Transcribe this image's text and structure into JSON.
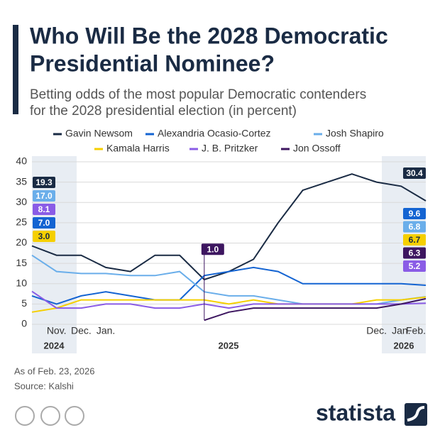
{
  "chart_data": {
    "type": "line",
    "title": [
      "Who Will Be the 2028 Democratic",
      "Presidential Nominee?"
    ],
    "subtitle": [
      "Betting odds of the most popular Democratic contenders",
      "for the 2028 presidential election (in percent)"
    ],
    "x": [
      "2024-10",
      "2024-11",
      "2024-12",
      "2025-01",
      "2025-02",
      "2025-03",
      "2025-04",
      "2025-05",
      "2025-06",
      "2025-07",
      "2025-08",
      "2025-09",
      "2025-10",
      "2025-11",
      "2025-12",
      "2026-01",
      "2026-02"
    ],
    "xlim": [
      "2024-10",
      "2026-02"
    ],
    "xticks": [
      {
        "value": "2024-11",
        "label": "Nov."
      },
      {
        "value": "2024-12",
        "label": "Dec."
      },
      {
        "value": "2025-01",
        "label": "Jan."
      },
      {
        "value": "2025-12",
        "label": "Dec."
      },
      {
        "value": "2026-01",
        "label": "Jan."
      },
      {
        "value": "2026-02",
        "label": "Feb."
      }
    ],
    "x_years": [
      "2024",
      "2025",
      "2026"
    ],
    "ylim": [
      0,
      40
    ],
    "yticks": [
      0,
      5,
      10,
      15,
      20,
      25,
      30,
      35,
      40
    ],
    "grid": true,
    "series": [
      {
        "name": "Gavin Newsom",
        "color": "#1a2b44",
        "values": [
          19.3,
          17,
          17,
          14,
          13,
          17,
          17,
          11,
          13,
          16,
          25,
          33,
          35,
          37,
          35,
          34,
          30.4
        ],
        "value_labels": [
          "19.3",
          null,
          null,
          null,
          null,
          null,
          null,
          null,
          null,
          null,
          null,
          null,
          null,
          null,
          null,
          null,
          "30.4"
        ]
      },
      {
        "name": "Alexandria Ocasio-Cortez",
        "color": "#1464d2",
        "values": [
          7.0,
          5,
          7,
          8,
          7,
          6,
          6,
          12,
          13,
          14,
          13,
          10,
          10,
          10,
          10,
          10,
          9.6
        ],
        "value_labels": [
          "7.0",
          null,
          null,
          null,
          null,
          null,
          null,
          null,
          null,
          null,
          null,
          null,
          null,
          null,
          null,
          null,
          "9.6"
        ]
      },
      {
        "name": "Josh Shapiro",
        "color": "#6aaeea",
        "values": [
          17.0,
          13,
          12.5,
          12.5,
          12,
          12,
          13,
          8,
          7,
          7,
          6,
          5,
          5,
          5,
          5,
          6,
          6.8
        ],
        "value_labels": [
          "17.0",
          null,
          null,
          null,
          null,
          null,
          null,
          null,
          null,
          null,
          null,
          null,
          null,
          null,
          null,
          null,
          "6.8"
        ]
      },
      {
        "name": "Kamala Harris",
        "color": "#f5cf00",
        "values": [
          3.0,
          4,
          6,
          6,
          6,
          6,
          6,
          6,
          5,
          6,
          5,
          5,
          5,
          5,
          6,
          6,
          6.7
        ],
        "value_labels": [
          "3.0",
          null,
          null,
          null,
          null,
          null,
          null,
          null,
          null,
          null,
          null,
          null,
          null,
          null,
          null,
          null,
          "6.7"
        ]
      },
      {
        "name": "J. B. Pritzker",
        "color": "#8a5ce6",
        "values": [
          8.1,
          4,
          4,
          5,
          5,
          4,
          4,
          5,
          4,
          5,
          5,
          5,
          5,
          5,
          5,
          5,
          5.2
        ],
        "value_labels": [
          "8.1",
          null,
          null,
          null,
          null,
          null,
          null,
          null,
          null,
          null,
          null,
          null,
          null,
          null,
          null,
          null,
          "5.2"
        ]
      },
      {
        "name": "Jon Ossoff",
        "color": "#3d1660",
        "values": [
          null,
          null,
          null,
          null,
          null,
          null,
          null,
          1.0,
          3,
          4,
          4,
          4,
          4,
          4,
          4,
          5,
          6.3
        ],
        "value_labels": [
          null,
          null,
          null,
          null,
          null,
          null,
          null,
          "1.0",
          null,
          null,
          null,
          null,
          null,
          null,
          null,
          null,
          "6.3"
        ]
      }
    ],
    "note": "As of Feb. 23, 2026",
    "source": "Source: Kalshi",
    "brand": "statista"
  }
}
